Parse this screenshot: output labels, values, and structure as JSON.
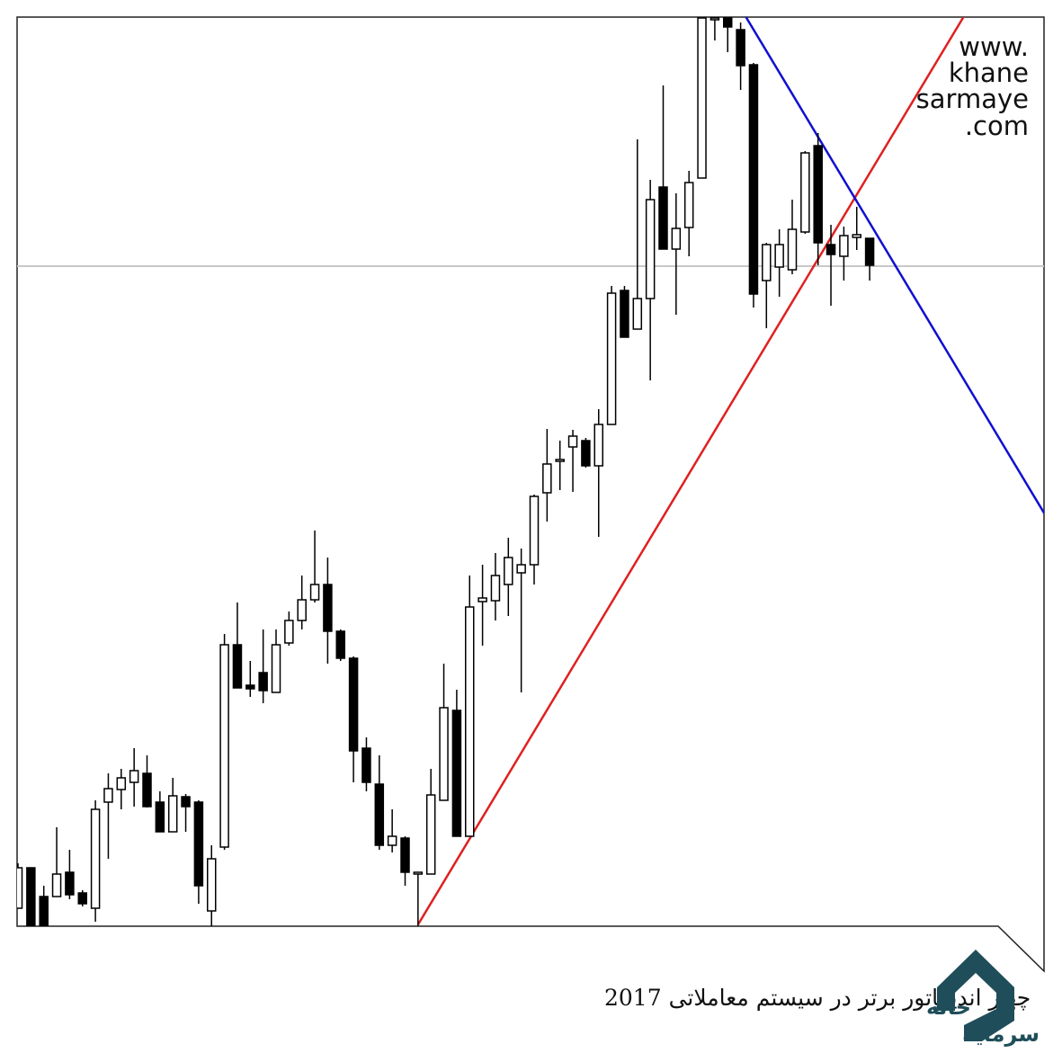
{
  "chart_data": {
    "type": "candlestick",
    "ylim": [
      0,
      1010
    ],
    "up_color": "#ffffff",
    "down_color": "#000000",
    "open": [
      20,
      65,
      33,
      33,
      60,
      37,
      20,
      138,
      152,
      160,
      170,
      138,
      105,
      144,
      138,
      17,
      88,
      313,
      268,
      282,
      260,
      315,
      340,
      363,
      380,
      328,
      298,
      198,
      158,
      90,
      98,
      58,
      58,
      140,
      240,
      100,
      361,
      362,
      380,
      393,
      402,
      482,
      517,
      533,
      540,
      512,
      558,
      707,
      664,
      698,
      822,
      753,
      777,
      832,
      1008,
      1010,
      997,
      958,
      718,
      733,
      730,
      772,
      868,
      758,
      745,
      766,
      765
    ],
    "high": [
      70,
      65,
      45,
      110,
      85,
      40,
      140,
      170,
      175,
      198,
      190,
      150,
      165,
      147,
      140,
      90,
      325,
      360,
      295,
      330,
      330,
      350,
      390,
      440,
      410,
      330,
      300,
      210,
      190,
      130,
      100,
      60,
      175,
      292,
      263,
      390,
      402,
      415,
      432,
      420,
      480,
      553,
      540,
      552,
      543,
      575,
      712,
      712,
      875,
      830,
      935,
      815,
      840,
      1010,
      1010,
      1010,
      1005,
      960,
      760,
      775,
      808,
      862,
      882,
      780,
      778,
      800,
      765
    ],
    "low": [
      20,
      0,
      0,
      33,
      30,
      22,
      5,
      75,
      130,
      133,
      132,
      105,
      105,
      105,
      25,
      0,
      85,
      265,
      255,
      248,
      260,
      312,
      330,
      360,
      292,
      295,
      160,
      150,
      85,
      82,
      45,
      0,
      58,
      140,
      100,
      100,
      312,
      340,
      345,
      260,
      380,
      450,
      485,
      483,
      510,
      433,
      558,
      655,
      664,
      607,
      753,
      680,
      745,
      832,
      985,
      972,
      930,
      688,
      665,
      700,
      725,
      770,
      735,
      690,
      718,
      752,
      718
    ],
    "close": [
      65,
      0,
      0,
      58,
      35,
      25,
      130,
      153,
      165,
      173,
      133,
      105,
      145,
      133,
      45,
      75,
      313,
      265,
      264,
      262,
      313,
      340,
      363,
      380,
      328,
      298,
      195,
      160,
      90,
      100,
      60,
      60,
      146,
      243,
      100,
      355,
      365,
      390,
      410,
      402,
      478,
      514,
      519,
      545,
      512,
      558,
      704,
      655,
      698,
      808,
      753,
      776,
      827,
      1010,
      1010,
      1000,
      957,
      703,
      758,
      758,
      775,
      860,
      760,
      747,
      768,
      769,
      735
    ],
    "watermark": [
      "www.",
      "khane",
      "sarmaye",
      ".com"
    ],
    "caption": "چهار اندیکاتور برتر در سیستم معاملاتی 2017",
    "logo_text": [
      "خانه",
      "سرمایه"
    ]
  }
}
